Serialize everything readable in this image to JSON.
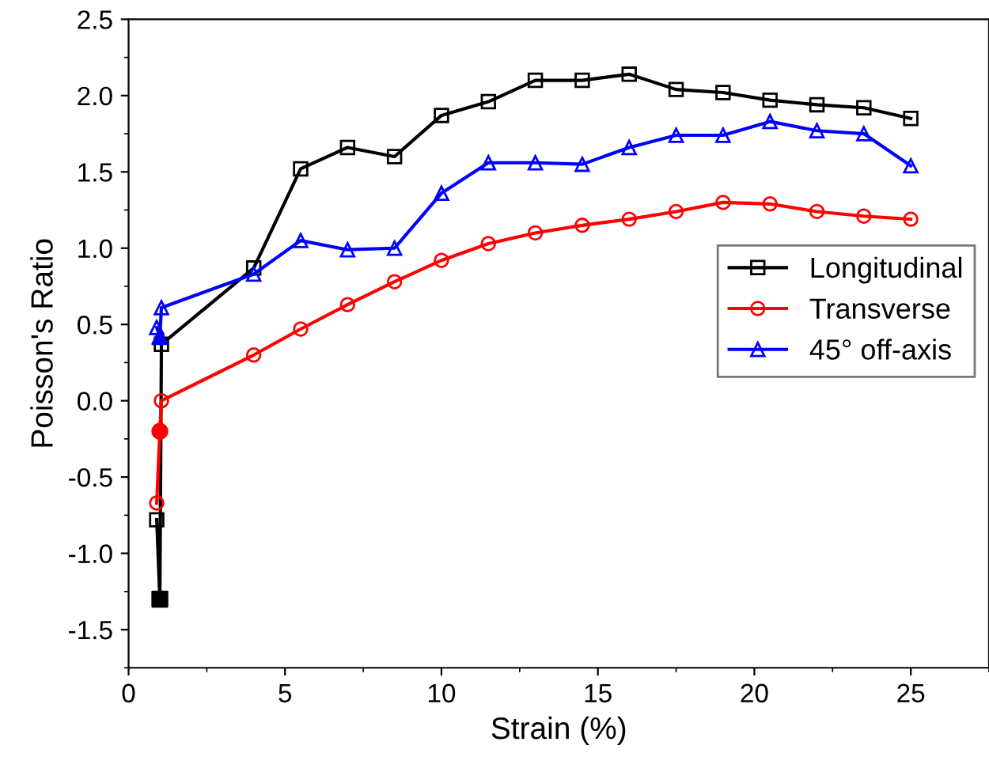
{
  "chart_data": {
    "type": "line",
    "xlabel": "Strain (%)",
    "ylabel": "Poisson's Ratio",
    "xlim": [
      0,
      27.5
    ],
    "ylim": [
      -1.75,
      2.5
    ],
    "xticks": [
      0,
      5,
      10,
      15,
      20,
      25
    ],
    "yticks": [
      {
        "value": -1.5,
        "label": "-1.5"
      },
      {
        "value": -1.0,
        "label": "-1.0"
      },
      {
        "value": -0.5,
        "label": "-0.5"
      },
      {
        "value": 0,
        "label": "0.0"
      },
      {
        "value": 0.5,
        "label": "0.5"
      },
      {
        "value": 1.0,
        "label": "1.0"
      },
      {
        "value": 1.5,
        "label": "1.5"
      },
      {
        "value": 2.0,
        "label": "2.0"
      },
      {
        "value": 2.5,
        "label": "2.5"
      }
    ],
    "legend": "right",
    "grid": false,
    "series": [
      {
        "name": "Longitudinal",
        "color": "#000000",
        "marker": "square",
        "x": [
          0.9,
          1.0,
          1.05,
          4,
          5.5,
          7,
          8.5,
          10,
          11.5,
          13,
          14.5,
          16,
          17.5,
          19,
          20.5,
          22,
          23.5,
          25
        ],
        "values": [
          -0.78,
          -1.3,
          0.37,
          0.87,
          1.52,
          1.66,
          1.6,
          1.87,
          1.96,
          2.1,
          2.1,
          2.14,
          2.04,
          2.02,
          1.97,
          1.94,
          1.92,
          1.85
        ]
      },
      {
        "name": "Transverse",
        "color": "#ff0000",
        "marker": "circle",
        "x": [
          0.9,
          1.0,
          1.05,
          4,
          5.5,
          7,
          8.5,
          10,
          11.5,
          13,
          14.5,
          16,
          17.5,
          19,
          20.5,
          22,
          23.5,
          25
        ],
        "values": [
          -0.67,
          -0.2,
          0.0,
          0.3,
          0.47,
          0.63,
          0.78,
          0.92,
          1.03,
          1.1,
          1.15,
          1.19,
          1.24,
          1.3,
          1.29,
          1.24,
          1.21,
          1.19
        ]
      },
      {
        "name": "45° off-axis",
        "color": "#0000ff",
        "marker": "triangle",
        "x": [
          0.9,
          1.0,
          1.05,
          4,
          5.5,
          7,
          8.5,
          10,
          11.5,
          13,
          14.5,
          16,
          17.5,
          19,
          20.5,
          22,
          23.5,
          25
        ],
        "values": [
          0.48,
          0.42,
          0.61,
          0.83,
          1.05,
          0.99,
          1.0,
          1.36,
          1.56,
          1.56,
          1.55,
          1.66,
          1.74,
          1.74,
          1.83,
          1.77,
          1.75,
          1.54
        ]
      },
      {
        "type": "scatter",
        "color": "#000000",
        "marker": "square",
        "x": [
          1.0
        ],
        "values": [
          -1.3
        ]
      },
      {
        "type": "scatter",
        "color": "#ff0000",
        "marker": "circle",
        "x": [
          1.0
        ],
        "values": [
          -0.2
        ]
      },
      {
        "type": "scatter",
        "color": "#0000ff",
        "marker": "triangle",
        "x": [
          1.0
        ],
        "values": [
          0.42
        ]
      }
    ]
  }
}
